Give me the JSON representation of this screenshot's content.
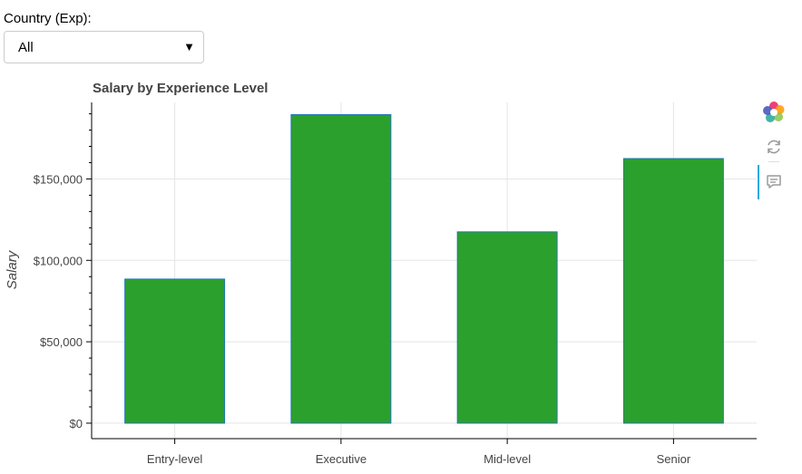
{
  "filter": {
    "label": "Country (Exp):",
    "selected": "All"
  },
  "chart_data": {
    "type": "bar",
    "title": "Salary by Experience Level",
    "xlabel": "",
    "ylabel": "Salary",
    "categories": [
      "Entry-level",
      "Executive",
      "Mid-level",
      "Senior"
    ],
    "values": [
      88500,
      189500,
      117500,
      162500
    ],
    "ylim": [
      -9500,
      197000
    ],
    "yticks": [
      0,
      50000,
      100000,
      150000
    ],
    "ytick_labels": [
      "$0",
      "$50,000",
      "$100,000",
      "$150,000"
    ],
    "grid": true,
    "legend": "none",
    "bar_fill_color": "#2ca02c",
    "bar_edge_color": "#1f77b4"
  },
  "toolbar": {
    "tools": [
      "bokeh-logo-icon",
      "reset-icon",
      "hover-icon"
    ]
  }
}
